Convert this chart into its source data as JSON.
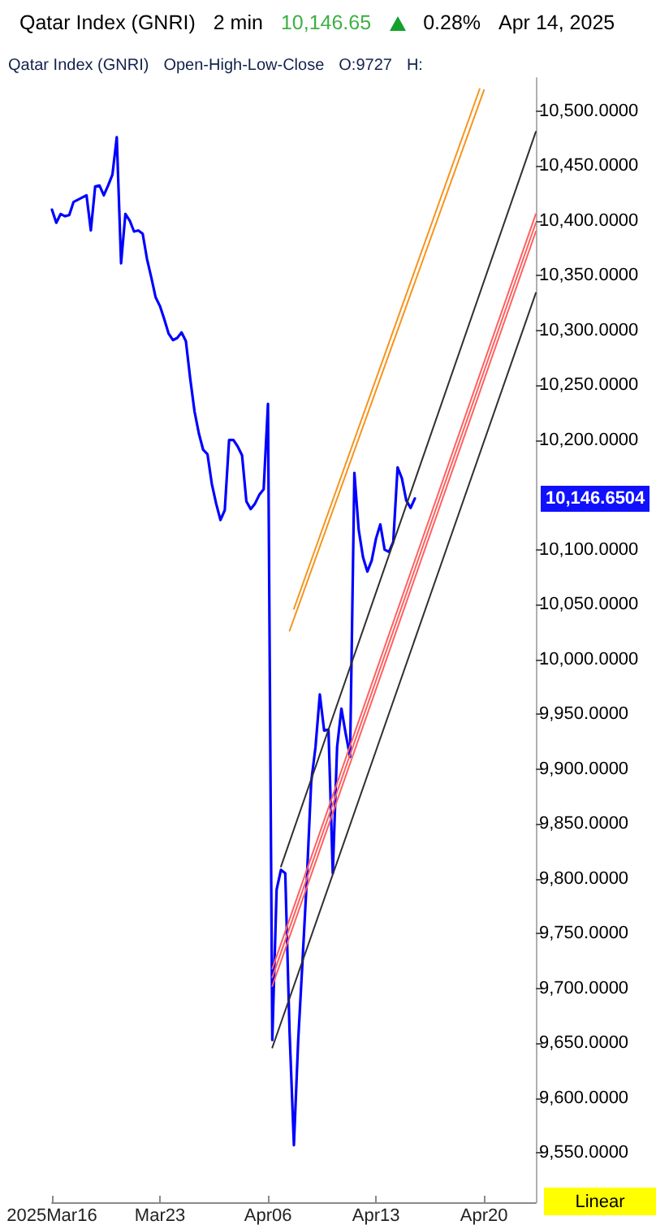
{
  "chart_data": {
    "type": "line",
    "title": "Qatar Index (GNRI)",
    "annotations": [
      "2 min",
      "10,146.65",
      "0.28%",
      "Apr 14, 2025",
      "Qatar Index (GNRI)",
      "Open-High-Low-Close",
      "O:9727",
      "H:",
      "Linear",
      "10,146.6504"
    ],
    "categories": [
      "2025Mar16",
      null,
      null,
      null,
      null,
      null,
      null,
      null,
      null,
      null,
      null,
      null,
      null,
      null,
      null,
      null,
      null,
      null,
      null,
      null,
      null,
      null,
      null,
      null,
      null,
      "Mar23",
      null,
      null,
      null,
      null,
      null,
      null,
      null,
      null,
      null,
      null,
      null,
      null,
      null,
      null,
      null,
      null,
      null,
      null,
      null,
      null,
      null,
      null,
      null,
      null,
      "Apr06",
      null,
      null,
      null,
      null,
      null,
      null,
      null,
      null,
      null,
      null,
      null,
      null,
      null,
      null,
      null,
      null,
      null,
      null,
      null,
      null,
      null,
      null,
      null,
      null,
      "Apr13",
      null,
      null,
      null,
      null,
      null,
      null,
      null,
      null,
      null,
      null,
      null,
      null,
      null,
      null,
      null,
      null,
      null,
      null,
      null,
      null,
      null,
      null,
      null,
      null,
      "Apr20",
      null,
      null,
      null,
      null,
      null,
      null,
      null,
      null,
      null,
      null,
      null,
      null
    ],
    "ylim": [
      9505,
      10530
    ],
    "yticks": [
      {
        "value": 9550,
        "label": "9,550.0000"
      },
      {
        "value": 9600,
        "label": "9,600.0000"
      },
      {
        "value": 9650,
        "label": "9,650.0000"
      },
      {
        "value": 9700,
        "label": "9,700.0000"
      },
      {
        "value": 9750,
        "label": "9,750.0000"
      },
      {
        "value": 9800,
        "label": "9,800.0000"
      },
      {
        "value": 9850,
        "label": "9,850.0000"
      },
      {
        "value": 9900,
        "label": "9,900.0000"
      },
      {
        "value": 9950,
        "label": "9,950.0000"
      },
      {
        "value": 10000,
        "label": "10,000.0000"
      },
      {
        "value": 10050,
        "label": "10,050.0000"
      },
      {
        "value": 10100,
        "label": "10,100.0000"
      },
      {
        "value": 10200,
        "label": "10,200.0000"
      },
      {
        "value": 10250,
        "label": "10,250.0000"
      },
      {
        "value": 10300,
        "label": "10,300.0000"
      },
      {
        "value": 10350,
        "label": "10,350.0000"
      },
      {
        "value": 10400,
        "label": "10,400.0000"
      },
      {
        "value": 10450,
        "label": "10,450.0000"
      },
      {
        "value": 10500,
        "label": "10,500.0000"
      }
    ],
    "series": [
      {
        "color": "#0000ff",
        "values": [
          10410,
          10398,
          10406,
          10404,
          10405,
          10417,
          10419,
          10421,
          10423,
          10391,
          10431,
          10432,
          10423,
          10432,
          10442,
          10476,
          10361,
          10406,
          10400,
          10390,
          10391,
          10388,
          10365,
          10348,
          10330,
          10322,
          10310,
          10297,
          10291,
          10293,
          10298,
          10290,
          10256,
          10226,
          10206,
          10191,
          10187,
          10160,
          10142,
          10127,
          10136,
          10200,
          10200,
          10194,
          10186,
          10144,
          10137,
          10142,
          10150,
          10155,
          10233,
          9653,
          9790,
          9808,
          9805,
          9660,
          9557,
          9653,
          9725,
          9800,
          9888,
          9920,
          9968,
          9935,
          9936,
          9805,
          9920,
          9955,
          9932,
          9911,
          10170,
          10118,
          10093,
          10080,
          10090,
          10110,
          10123,
          10100,
          10098,
          10107,
          10175,
          10165,
          10145,
          10138,
          10146.65,
          null,
          null,
          null,
          null,
          null,
          null,
          null,
          null,
          null,
          null,
          null,
          null,
          null,
          null,
          null,
          null,
          null,
          null,
          null,
          null,
          null,
          null,
          null,
          null,
          null,
          null,
          null,
          null
        ]
      },
      {
        "color": "#f7941d",
        "values": [
          null,
          null,
          null,
          null,
          null,
          null,
          null,
          null,
          null,
          null,
          null,
          null,
          null,
          null,
          null,
          null,
          null,
          null,
          null,
          null,
          null,
          null,
          null,
          null,
          null,
          null,
          null,
          null,
          null,
          null,
          null,
          null,
          null,
          null,
          null,
          null,
          null,
          null,
          null,
          null,
          null,
          null,
          null,
          null,
          null,
          null,
          null,
          null,
          null,
          null,
          null,
          null,
          null,
          null,
          null,
          null,
          10046,
          null,
          null,
          null,
          null,
          null,
          null,
          null,
          null,
          null,
          null,
          null,
          null,
          null,
          null,
          null,
          null,
          null,
          null,
          null,
          null,
          null,
          null,
          null,
          null,
          null,
          null,
          null,
          null,
          null,
          null,
          null,
          null,
          null,
          null,
          null,
          null,
          null,
          null,
          null,
          null,
          null,
          null,
          10520,
          null,
          null,
          null,
          null,
          null,
          null,
          null,
          null,
          null,
          null,
          null,
          null,
          null
        ]
      },
      {
        "color": "#f7941d",
        "values": [
          null,
          null,
          null,
          null,
          null,
          null,
          null,
          null,
          null,
          null,
          null,
          null,
          null,
          null,
          null,
          null,
          null,
          null,
          null,
          null,
          null,
          null,
          null,
          null,
          null,
          null,
          null,
          null,
          null,
          null,
          null,
          null,
          null,
          null,
          null,
          null,
          null,
          null,
          null,
          null,
          null,
          null,
          null,
          null,
          null,
          null,
          null,
          null,
          null,
          null,
          null,
          null,
          null,
          null,
          null,
          10026,
          null,
          null,
          null,
          null,
          null,
          null,
          null,
          null,
          null,
          null,
          null,
          null,
          null,
          null,
          null,
          null,
          null,
          null,
          null,
          null,
          null,
          null,
          null,
          null,
          null,
          null,
          null,
          null,
          null,
          null,
          null,
          null,
          null,
          null,
          null,
          null,
          null,
          null,
          null,
          null,
          null,
          null,
          null,
          null,
          10519,
          null,
          null,
          null,
          null,
          null,
          null,
          null,
          null,
          null,
          null,
          null,
          null
        ]
      },
      {
        "color": "#ff6060",
        "values": [
          null,
          null,
          null,
          null,
          null,
          null,
          null,
          null,
          null,
          null,
          null,
          null,
          null,
          null,
          null,
          null,
          null,
          null,
          null,
          null,
          null,
          null,
          null,
          null,
          null,
          null,
          null,
          null,
          null,
          null,
          null,
          null,
          null,
          null,
          null,
          null,
          null,
          null,
          null,
          null,
          null,
          null,
          null,
          null,
          null,
          null,
          null,
          null,
          null,
          null,
          null,
          9718,
          null,
          null,
          null,
          null,
          null,
          null,
          null,
          null,
          null,
          null,
          null,
          null,
          null,
          null,
          null,
          null,
          null,
          null,
          null,
          null,
          null,
          null,
          null,
          null,
          null,
          null,
          null,
          null,
          null,
          null,
          null,
          null,
          null,
          null,
          null,
          null,
          null,
          null,
          null,
          null,
          null,
          null,
          null,
          null,
          null,
          null,
          null,
          null,
          null,
          null,
          null,
          null,
          null,
          null,
          null,
          null,
          null,
          null,
          null,
          null,
          10406
        ]
      },
      {
        "color": "#ff6060",
        "values": [
          null,
          null,
          null,
          null,
          null,
          null,
          null,
          null,
          null,
          null,
          null,
          null,
          null,
          null,
          null,
          null,
          null,
          null,
          null,
          null,
          null,
          null,
          null,
          null,
          null,
          null,
          null,
          null,
          null,
          null,
          null,
          null,
          null,
          null,
          null,
          null,
          null,
          null,
          null,
          null,
          null,
          null,
          null,
          null,
          null,
          null,
          null,
          null,
          null,
          null,
          null,
          9710,
          null,
          null,
          null,
          null,
          null,
          null,
          null,
          null,
          null,
          null,
          null,
          null,
          null,
          null,
          null,
          null,
          null,
          null,
          null,
          null,
          null,
          null,
          null,
          null,
          null,
          null,
          null,
          null,
          null,
          null,
          null,
          null,
          null,
          null,
          null,
          null,
          null,
          null,
          null,
          null,
          null,
          null,
          null,
          null,
          null,
          null,
          null,
          null,
          null,
          null,
          null,
          null,
          null,
          null,
          null,
          null,
          null,
          null,
          null,
          null,
          10398
        ]
      },
      {
        "color": "#ff6060",
        "values": [
          null,
          null,
          null,
          null,
          null,
          null,
          null,
          null,
          null,
          null,
          null,
          null,
          null,
          null,
          null,
          null,
          null,
          null,
          null,
          null,
          null,
          null,
          null,
          null,
          null,
          null,
          null,
          null,
          null,
          null,
          null,
          null,
          null,
          null,
          null,
          null,
          null,
          null,
          null,
          null,
          null,
          null,
          null,
          null,
          null,
          null,
          null,
          null,
          null,
          null,
          null,
          9702,
          null,
          null,
          null,
          null,
          null,
          null,
          null,
          null,
          null,
          null,
          null,
          null,
          null,
          null,
          null,
          null,
          null,
          null,
          null,
          null,
          null,
          null,
          null,
          null,
          null,
          null,
          null,
          null,
          null,
          null,
          null,
          null,
          null,
          null,
          null,
          null,
          null,
          null,
          null,
          null,
          null,
          null,
          null,
          null,
          null,
          null,
          null,
          null,
          null,
          null,
          null,
          null,
          null,
          null,
          null,
          null,
          null,
          null,
          null,
          null,
          10390
        ]
      },
      {
        "color": "#303030",
        "values": [
          null,
          null,
          null,
          null,
          null,
          null,
          null,
          null,
          null,
          null,
          null,
          null,
          null,
          null,
          null,
          null,
          null,
          null,
          null,
          null,
          null,
          null,
          null,
          null,
          null,
          null,
          null,
          null,
          null,
          null,
          null,
          null,
          null,
          null,
          null,
          null,
          null,
          null,
          null,
          null,
          null,
          null,
          null,
          null,
          null,
          null,
          null,
          null,
          null,
          null,
          null,
          null,
          null,
          9811,
          null,
          null,
          null,
          null,
          null,
          null,
          null,
          null,
          null,
          null,
          null,
          null,
          null,
          null,
          null,
          null,
          null,
          null,
          null,
          null,
          null,
          null,
          null,
          null,
          null,
          null,
          null,
          null,
          null,
          null,
          null,
          null,
          null,
          null,
          null,
          null,
          null,
          null,
          null,
          null,
          null,
          null,
          null,
          null,
          null,
          null,
          null,
          null,
          null,
          null,
          null,
          null,
          null,
          null,
          null,
          null,
          null,
          null,
          10481
        ]
      },
      {
        "color": "#303030",
        "values": [
          null,
          null,
          null,
          null,
          null,
          null,
          null,
          null,
          null,
          null,
          null,
          null,
          null,
          null,
          null,
          null,
          null,
          null,
          null,
          null,
          null,
          null,
          null,
          null,
          null,
          null,
          null,
          null,
          null,
          null,
          null,
          null,
          null,
          null,
          null,
          null,
          null,
          null,
          null,
          null,
          null,
          null,
          null,
          null,
          null,
          null,
          null,
          null,
          null,
          null,
          null,
          9646,
          null,
          null,
          null,
          null,
          null,
          null,
          null,
          null,
          null,
          null,
          null,
          null,
          null,
          null,
          null,
          null,
          null,
          null,
          null,
          null,
          null,
          null,
          null,
          null,
          null,
          null,
          null,
          null,
          null,
          null,
          null,
          null,
          null,
          null,
          null,
          null,
          null,
          null,
          null,
          null,
          null,
          null,
          null,
          null,
          null,
          null,
          null,
          null,
          null,
          null,
          null,
          null,
          null,
          null,
          null,
          null,
          null,
          null,
          null,
          null,
          10334
        ]
      }
    ]
  }
}
